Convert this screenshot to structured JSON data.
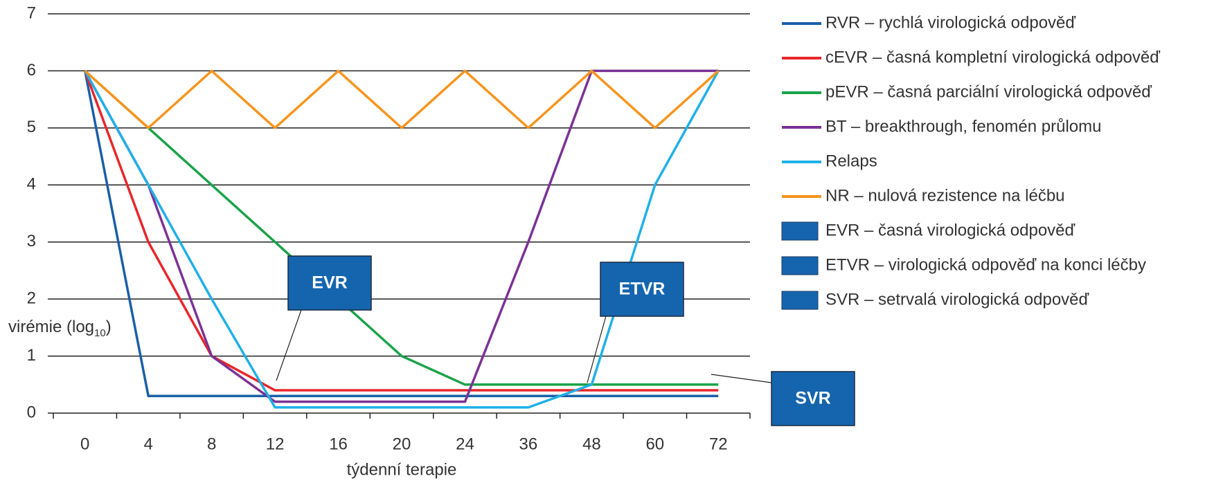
{
  "chart_data": {
    "type": "line",
    "categories": [
      "0",
      "4",
      "8",
      "12",
      "16",
      "20",
      "24",
      "36",
      "48",
      "60",
      "72"
    ],
    "x_label": "týdenní terapie",
    "y_label": [
      "virémie (log",
      "10",
      ")"
    ],
    "ylim": [
      0,
      7
    ],
    "yticks": [
      0,
      1,
      2,
      3,
      4,
      5,
      6,
      7
    ],
    "grid": true,
    "series": [
      {
        "name": "RVR – rychlá virologická odpověď",
        "color": "#1a5fa8",
        "values": [
          6,
          0.3,
          0.3,
          0.3,
          0.3,
          0.3,
          0.3,
          0.3,
          0.3,
          0.3,
          0.3
        ]
      },
      {
        "name": "cEVR – časná kompletní virologická odpověď",
        "color": "#e8262b",
        "values": [
          6,
          3,
          1,
          0.4,
          0.4,
          0.4,
          0.4,
          0.4,
          0.4,
          0.4,
          0.4
        ]
      },
      {
        "name": "pEVR – časná parciální virologická odpověď",
        "color": "#1aa34a",
        "values": [
          6,
          5,
          4,
          3,
          2,
          1,
          0.5,
          0.5,
          0.5,
          0.5,
          0.5
        ]
      },
      {
        "name": "BT – breakthrough, fenomén průlomu",
        "color": "#7b3294",
        "values": [
          6,
          4,
          1,
          0.2,
          0.2,
          0.2,
          0.2,
          3,
          6,
          6,
          6
        ]
      },
      {
        "name": "Relaps",
        "color": "#1fb0e8",
        "values": [
          6,
          4,
          2,
          0.1,
          0.1,
          0.1,
          0.1,
          0.1,
          0.5,
          4,
          6
        ]
      },
      {
        "name": "NR – nulová rezistence na léčbu",
        "color": "#f7941d",
        "values": [
          6,
          5,
          6,
          5,
          6,
          5,
          6,
          5,
          6,
          5,
          6
        ]
      }
    ],
    "legend_boxes": [
      {
        "label": "EVR – časná virologická odpověď",
        "color": "#1565ae"
      },
      {
        "label": "ETVR – virologická odpověď na konci léčby",
        "color": "#1565ae"
      },
      {
        "label": "SVR – setrvalá virologická odpověď",
        "color": "#1565ae"
      }
    ],
    "annotations": [
      "EVR",
      "ETVR",
      "SVR"
    ]
  }
}
